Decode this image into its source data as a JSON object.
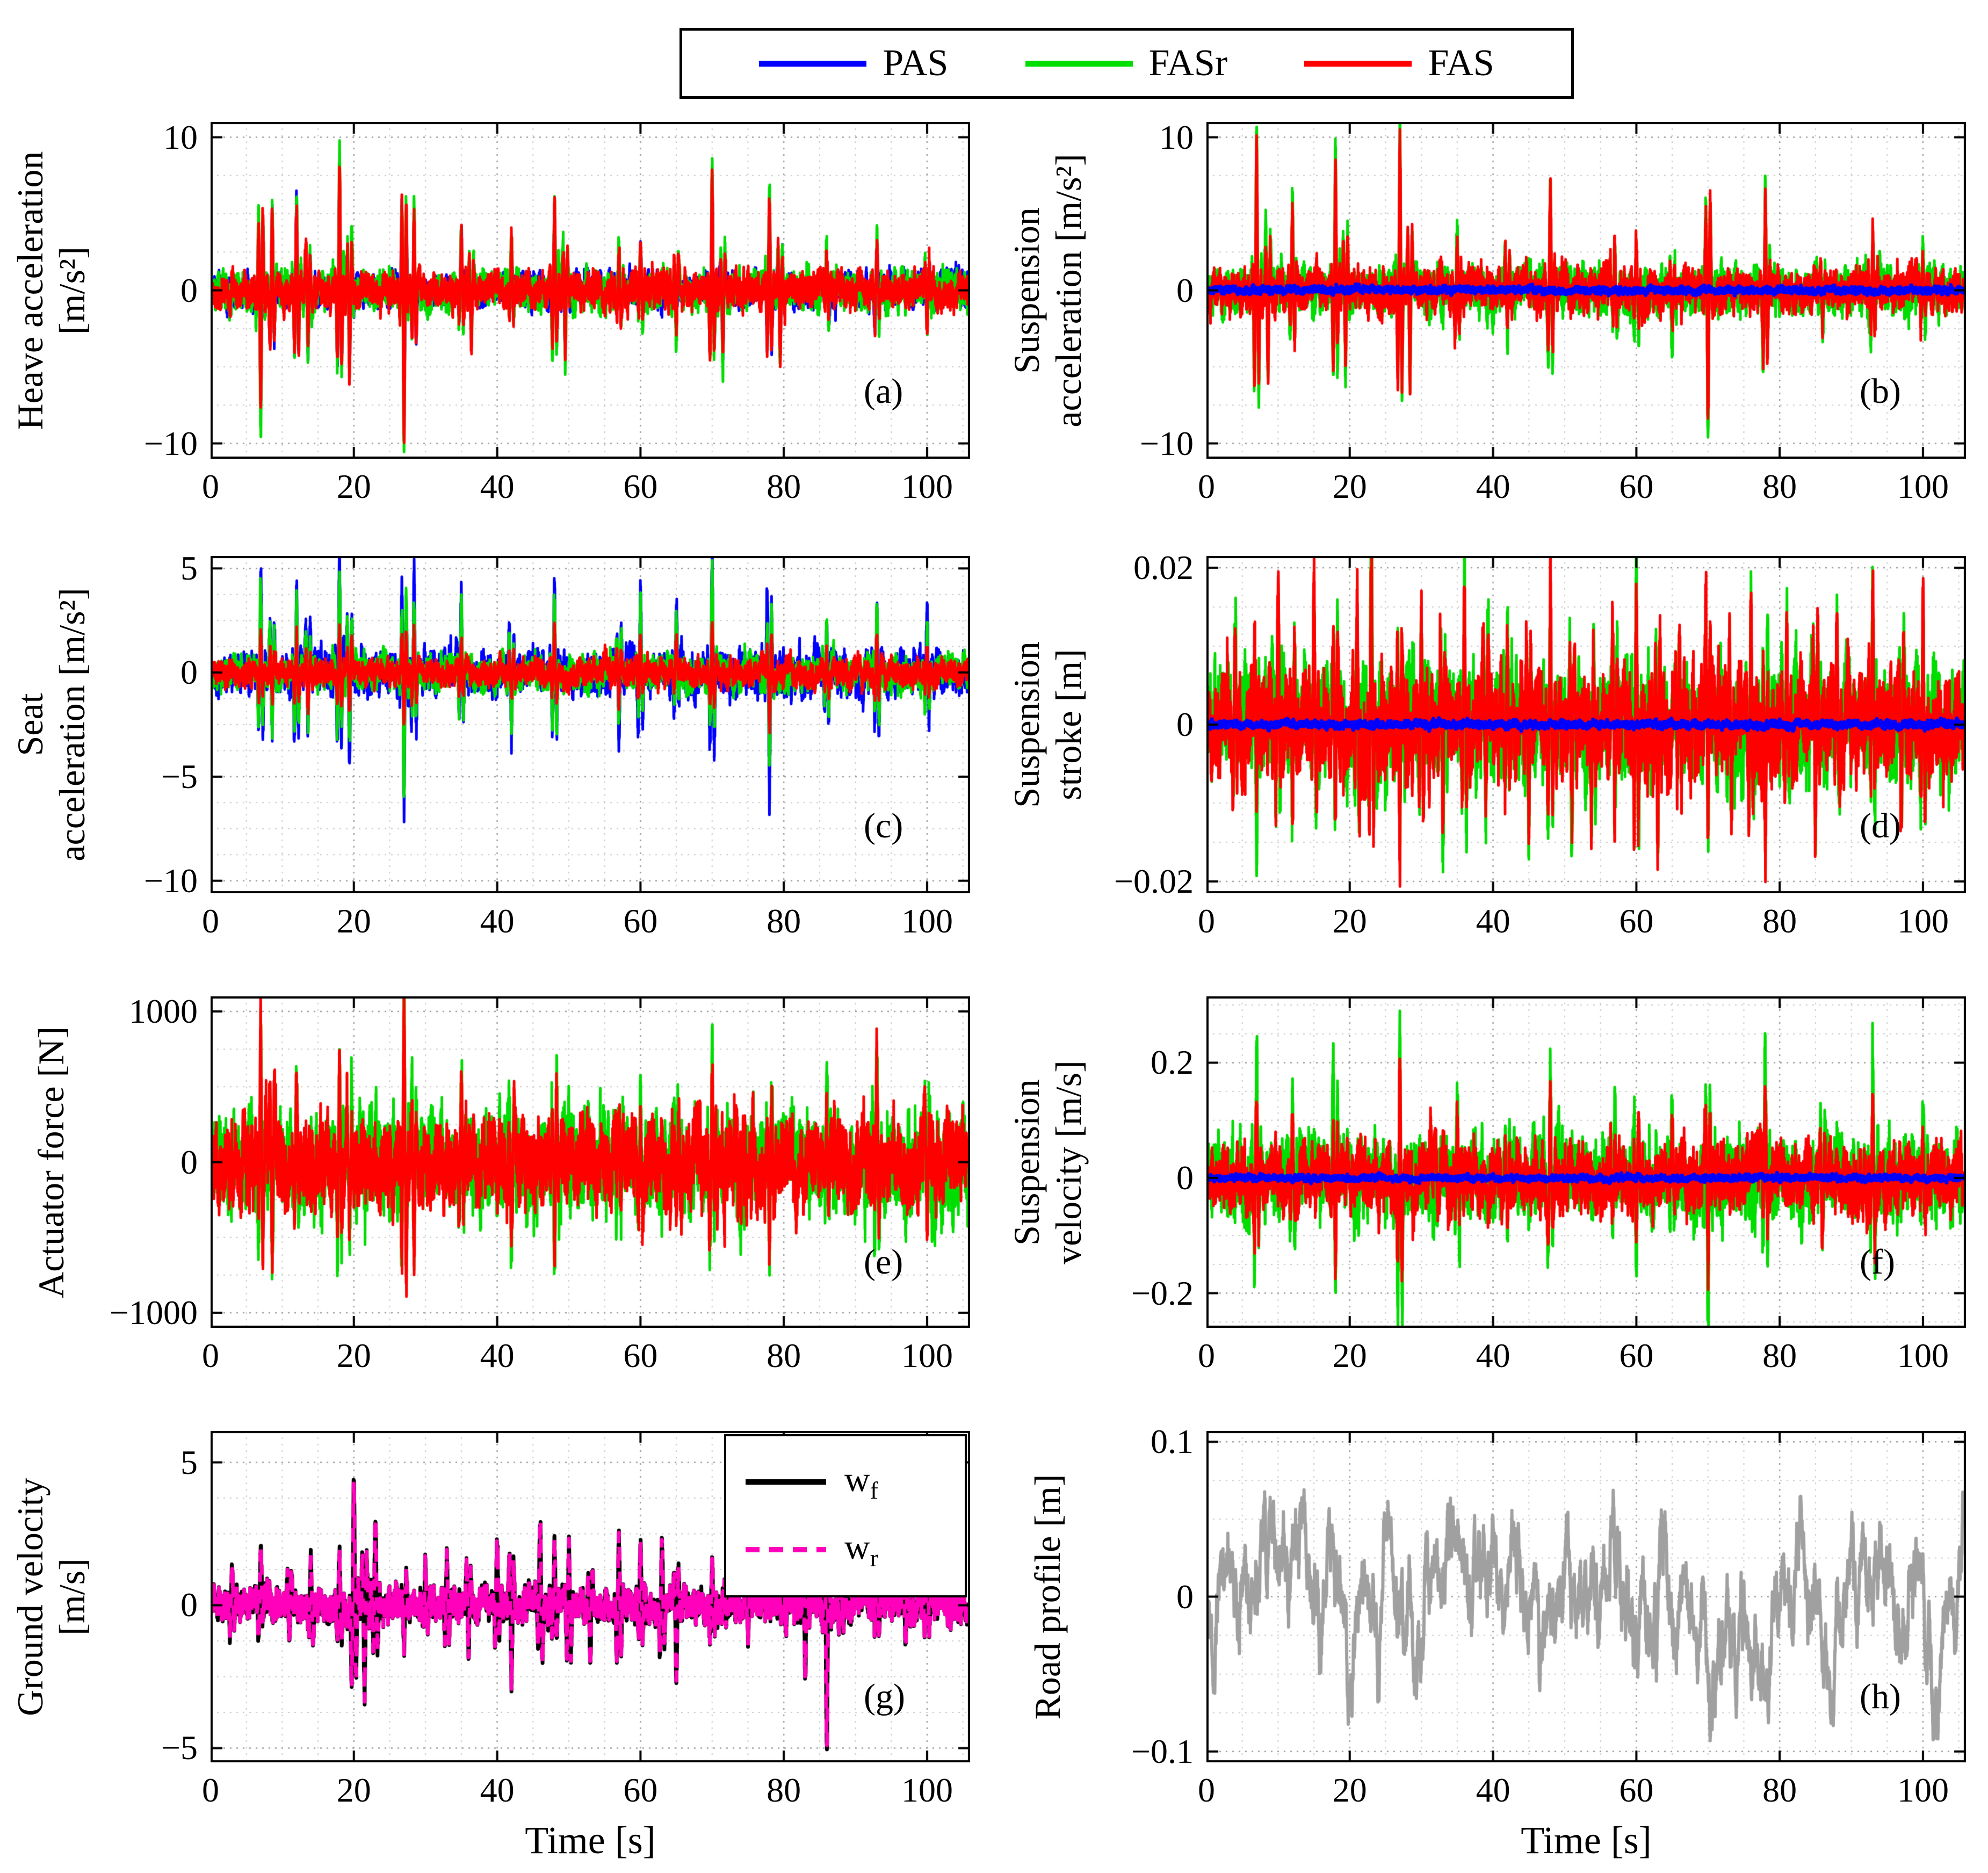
{
  "figure": {
    "background": "#ffffff",
    "legend": {
      "entries": [
        {
          "label": "PAS",
          "color": "#0000FF",
          "dash": false
        },
        {
          "label": "FASr",
          "color": "#00DD00",
          "dash": false
        },
        {
          "label": "FAS",
          "color": "#FF0000",
          "dash": false
        }
      ]
    },
    "time_axis_label": "Time [s]"
  },
  "chart_data": [
    {
      "id": "a",
      "type": "line",
      "panel_label": "(a)",
      "ylabel_lines": [
        "Heave acceleration",
        "[m/s²]"
      ],
      "xlabel": "",
      "xlim": [
        0,
        106
      ],
      "ylim": [
        -11,
        11
      ],
      "xticks": [
        0,
        20,
        40,
        60,
        80,
        100
      ],
      "xtick_labels": [
        "0",
        "20",
        "40",
        "60",
        "80",
        "100"
      ],
      "yticks": [
        -10,
        0,
        10
      ],
      "ytick_labels": [
        "−10",
        "0",
        "10"
      ],
      "grid": true,
      "events": [
        [
          7,
          -7.8
        ],
        [
          8.6,
          5.2
        ],
        [
          12,
          6.3
        ],
        [
          13.6,
          -4.2
        ],
        [
          18,
          8.3
        ],
        [
          19.4,
          -5
        ],
        [
          27,
          -9.3
        ],
        [
          28.4,
          5
        ],
        [
          35,
          3.6
        ],
        [
          36.4,
          -3
        ],
        [
          42,
          2.6
        ],
        [
          48,
          5.6
        ],
        [
          49.5,
          -4
        ],
        [
          57,
          2.4
        ],
        [
          60,
          2.8
        ],
        [
          65,
          -2.4
        ],
        [
          70,
          7.3
        ],
        [
          71.5,
          -4.2
        ],
        [
          78,
          5.9
        ],
        [
          79.5,
          -4
        ],
        [
          86,
          2.4
        ],
        [
          93,
          3.1
        ],
        [
          100,
          -2.2
        ]
      ],
      "series": [
        {
          "name": "PAS",
          "color": "#0000FF",
          "width": 5,
          "base": 1.0,
          "spike_scale": 0.92
        },
        {
          "name": "FASr",
          "color": "#00DD00",
          "width": 5,
          "base": 1.15,
          "spike_scale": 1.07
        },
        {
          "name": "FAS",
          "color": "#FF0000",
          "width": 5,
          "base": 1.08,
          "spike_scale": 1.0
        }
      ]
    },
    {
      "id": "b",
      "type": "line",
      "panel_label": "(b)",
      "ylabel_lines": [
        "Suspension",
        "acceleration [m/s²]"
      ],
      "xlabel": "",
      "xlim": [
        0,
        106
      ],
      "ylim": [
        -11,
        11
      ],
      "xticks": [
        0,
        20,
        40,
        60,
        80,
        100
      ],
      "xtick_labels": [
        "0",
        "20",
        "40",
        "60",
        "80",
        "100"
      ],
      "yticks": [
        -10,
        0,
        10
      ],
      "ytick_labels": [
        "−10",
        "0",
        "10"
      ],
      "grid": true,
      "events": [
        [
          7,
          9.4
        ],
        [
          8.6,
          -5
        ],
        [
          12,
          4.8
        ],
        [
          18,
          7.9
        ],
        [
          19.4,
          -4.6
        ],
        [
          27,
          9.6
        ],
        [
          28.4,
          -5.2
        ],
        [
          35,
          3.8
        ],
        [
          42,
          -3
        ],
        [
          48,
          6.7
        ],
        [
          57,
          2.6
        ],
        [
          60,
          3.2
        ],
        [
          65,
          -2.6
        ],
        [
          70,
          -8.8
        ],
        [
          78,
          6.7
        ],
        [
          86,
          -2.6
        ],
        [
          93,
          3.8
        ],
        [
          100,
          2.6
        ]
      ],
      "series": [
        {
          "name": "FASr",
          "color": "#00DD00",
          "width": 5,
          "base": 1.45,
          "spike_scale": 1.14
        },
        {
          "name": "FAS",
          "color": "#FF0000",
          "width": 5,
          "base": 1.3,
          "spike_scale": 1.0
        },
        {
          "name": "PAS",
          "color": "#0000FF",
          "width": 7,
          "base": 0.22,
          "spike_scale": 0
        }
      ]
    },
    {
      "id": "c",
      "type": "line",
      "panel_label": "(c)",
      "ylabel_lines": [
        "Seat",
        "acceleration [m/s²]"
      ],
      "xlabel": "",
      "xlim": [
        0,
        106
      ],
      "ylim": [
        -10.6,
        5.6
      ],
      "xticks": [
        0,
        20,
        40,
        60,
        80,
        100
      ],
      "xtick_labels": [
        "0",
        "20",
        "40",
        "60",
        "80",
        "100"
      ],
      "yticks": [
        -10,
        -5,
        0,
        5
      ],
      "ytick_labels": [
        "−10",
        "−5",
        "0",
        "5"
      ],
      "grid": true,
      "events": [
        [
          7,
          5.1
        ],
        [
          8.6,
          -3.6
        ],
        [
          12,
          4.5
        ],
        [
          13.6,
          -3.2
        ],
        [
          18,
          5.5
        ],
        [
          19.4,
          -4.2
        ],
        [
          27,
          -7
        ],
        [
          28.4,
          4.2
        ],
        [
          35,
          4
        ],
        [
          42,
          -3.2
        ],
        [
          48,
          4.5
        ],
        [
          57,
          -2.9
        ],
        [
          60,
          4
        ],
        [
          65,
          3
        ],
        [
          70,
          5.5
        ],
        [
          78,
          -5.6
        ],
        [
          86,
          2.9
        ],
        [
          93,
          4
        ],
        [
          100,
          3
        ]
      ],
      "series": [
        {
          "name": "PAS",
          "color": "#0000FF",
          "width": 5,
          "base": 0.95,
          "spike_scale": 1.0
        },
        {
          "name": "FASr",
          "color": "#00DD00",
          "width": 5,
          "base": 0.75,
          "spike_scale": 0.8
        },
        {
          "name": "FAS",
          "color": "#FF0000",
          "width": 5,
          "base": 0.6,
          "spike_scale": 0.4
        }
      ]
    },
    {
      "id": "d",
      "type": "line",
      "panel_label": "(d)",
      "ylabel_lines": [
        "Suspension",
        "stroke [m]"
      ],
      "xlabel": "",
      "xlim": [
        0,
        106
      ],
      "ylim": [
        -0.0215,
        0.0215
      ],
      "xticks": [
        0,
        20,
        40,
        60,
        80,
        100
      ],
      "xtick_labels": [
        "0",
        "20",
        "40",
        "60",
        "80",
        "100"
      ],
      "yticks": [
        -0.02,
        0,
        0.02
      ],
      "ytick_labels": [
        "−0.02",
        "0",
        "0.02"
      ],
      "grid": true,
      "events": [
        [
          4,
          0.01
        ],
        [
          7,
          -0.012
        ],
        [
          10,
          0.013
        ],
        [
          12,
          -0.011
        ],
        [
          15,
          0.014
        ],
        [
          18,
          -0.013
        ],
        [
          21,
          0.012
        ],
        [
          23,
          0.019
        ],
        [
          27,
          -0.014
        ],
        [
          30,
          0.012
        ],
        [
          33,
          -0.013
        ],
        [
          36,
          0.016
        ],
        [
          39,
          -0.012
        ],
        [
          42,
          0.012
        ],
        [
          45,
          -0.013
        ],
        [
          48,
          0.015
        ],
        [
          51,
          -0.012
        ],
        [
          54,
          0.011
        ],
        [
          57,
          -0.012
        ],
        [
          60,
          0.018
        ],
        [
          63,
          -0.013
        ],
        [
          66,
          0.011
        ],
        [
          70,
          -0.013
        ],
        [
          73,
          0.012
        ],
        [
          76,
          0.015
        ],
        [
          78,
          -0.014
        ],
        [
          81,
          0.012
        ],
        [
          85,
          -0.014
        ],
        [
          88,
          0.011
        ],
        [
          93,
          0.013
        ],
        [
          97,
          -0.012
        ],
        [
          100,
          0.012
        ]
      ],
      "series": [
        {
          "name": "FASr",
          "color": "#00DD00",
          "width": 5,
          "base": 0.0068,
          "spike_scale": 1.08
        },
        {
          "name": "FAS",
          "color": "#FF0000",
          "width": 5,
          "base": 0.0062,
          "spike_scale": 1.0
        },
        {
          "name": "PAS",
          "color": "#0000FF",
          "width": 7,
          "base": 0.00045,
          "spike_scale": 0
        }
      ]
    },
    {
      "id": "e",
      "type": "line",
      "panel_label": "(e)",
      "ylabel_lines": [
        "Actuator force [N]"
      ],
      "xlabel": "",
      "xlim": [
        0,
        106
      ],
      "ylim": [
        -1100,
        1100
      ],
      "xticks": [
        0,
        20,
        40,
        60,
        80,
        100
      ],
      "xtick_labels": [
        "0",
        "20",
        "40",
        "60",
        "80",
        "100"
      ],
      "yticks": [
        -1000,
        0,
        1000
      ],
      "ytick_labels": [
        "−1000",
        "0",
        "1000"
      ],
      "grid": true,
      "events": [
        [
          7,
          800
        ],
        [
          8.6,
          -520
        ],
        [
          12,
          520
        ],
        [
          18,
          640
        ],
        [
          19.4,
          -460
        ],
        [
          27,
          930
        ],
        [
          28.4,
          -520
        ],
        [
          35,
          420
        ],
        [
          42,
          -380
        ],
        [
          48,
          -600
        ],
        [
          57,
          340
        ],
        [
          60,
          420
        ],
        [
          65,
          -360
        ],
        [
          70,
          640
        ],
        [
          78,
          -560
        ],
        [
          86,
          340
        ],
        [
          93,
          640
        ],
        [
          100,
          -400
        ]
      ],
      "series": [
        {
          "name": "PAS",
          "color": "#0000FF",
          "width": 5,
          "base": 2,
          "spike_scale": 0
        },
        {
          "name": "FASr",
          "color": "#00DD00",
          "width": 5,
          "base": 300,
          "spike_scale": 1.12
        },
        {
          "name": "FAS",
          "color": "#FF0000",
          "width": 5,
          "base": 272,
          "spike_scale": 1.0
        }
      ]
    },
    {
      "id": "f",
      "type": "line",
      "panel_label": "(f)",
      "ylabel_lines": [
        "Suspension",
        "velocity [m/s]"
      ],
      "xlabel": "",
      "xlim": [
        0,
        106
      ],
      "ylim": [
        -0.26,
        0.315
      ],
      "xticks": [
        0,
        20,
        40,
        60,
        80,
        100
      ],
      "xtick_labels": [
        "0",
        "20",
        "40",
        "60",
        "80",
        "100"
      ],
      "yticks": [
        -0.2,
        0,
        0.2
      ],
      "ytick_labels": [
        "−0.2",
        "0",
        "0.2"
      ],
      "grid": true,
      "events": [
        [
          7,
          0.155
        ],
        [
          12,
          0.1
        ],
        [
          18,
          -0.145
        ],
        [
          27,
          0.195
        ],
        [
          35,
          0.08
        ],
        [
          42,
          -0.07
        ],
        [
          48,
          0.12
        ],
        [
          57,
          0.07
        ],
        [
          60,
          -0.1
        ],
        [
          65,
          0.07
        ],
        [
          70,
          -0.165
        ],
        [
          78,
          0.135
        ],
        [
          86,
          -0.07
        ],
        [
          93,
          0.115
        ],
        [
          100,
          0.08
        ]
      ],
      "series": [
        {
          "name": "FASr",
          "color": "#00DD00",
          "width": 5,
          "base": 0.065,
          "spike_scale": 1.55
        },
        {
          "name": "FAS",
          "color": "#FF0000",
          "width": 5,
          "base": 0.055,
          "spike_scale": 1.0
        },
        {
          "name": "PAS",
          "color": "#0000FF",
          "width": 7,
          "base": 0.005,
          "spike_scale": 0
        }
      ]
    },
    {
      "id": "g",
      "type": "line",
      "panel_label": "(g)",
      "ylabel_lines": [
        "Ground velocity",
        "[m/s]"
      ],
      "xlabel": "Time [s]",
      "xlim": [
        0,
        106
      ],
      "ylim": [
        -5.5,
        6.1
      ],
      "xticks": [
        0,
        20,
        40,
        60,
        80,
        100
      ],
      "xtick_labels": [
        "0",
        "20",
        "40",
        "60",
        "80",
        "100"
      ],
      "yticks": [
        -5,
        0,
        5
      ],
      "ytick_labels": [
        "−5",
        "0",
        "5"
      ],
      "grid": true,
      "events": [
        [
          3,
          1.4
        ],
        [
          7,
          1.7
        ],
        [
          11,
          -1.6
        ],
        [
          14,
          1.5
        ],
        [
          18,
          2
        ],
        [
          20,
          4.5
        ],
        [
          21.5,
          -2.9
        ],
        [
          23,
          2.7
        ],
        [
          27,
          -1.5
        ],
        [
          30,
          1.3
        ],
        [
          33,
          1.5
        ],
        [
          36,
          -1.8
        ],
        [
          40,
          2.3
        ],
        [
          42,
          -2.5
        ],
        [
          46,
          2.6
        ],
        [
          48,
          2
        ],
        [
          50,
          2.3
        ],
        [
          53,
          -1.9
        ],
        [
          57,
          2.7
        ],
        [
          60,
          2.1
        ],
        [
          63,
          2.3
        ],
        [
          65,
          -2
        ],
        [
          70,
          1.4
        ],
        [
          75,
          -1.2
        ],
        [
          80,
          1.4
        ],
        [
          83,
          -2.4
        ],
        [
          86,
          -4.4
        ],
        [
          88,
          1.5
        ],
        [
          93,
          1.6
        ],
        [
          97,
          -1.2
        ],
        [
          100,
          1.3
        ]
      ],
      "series": [
        {
          "name": "w_f",
          "color": "#000000",
          "width": 7,
          "base": 0.55,
          "spike_scale": 1.0
        },
        {
          "name": "w_r",
          "color": "#FF00BB",
          "width": 7,
          "base": 0.55,
          "spike_scale": 0.97,
          "dash": [
            26,
            20
          ],
          "copy_prev": true,
          "copy_scale": 0.97
        }
      ],
      "legend": {
        "entries": [
          {
            "main": "w",
            "sub": "f",
            "color": "#000000",
            "dash": false
          },
          {
            "main": "w",
            "sub": "r",
            "color": "#FF00BB",
            "dash": true
          }
        ]
      }
    },
    {
      "id": "h",
      "type": "line",
      "panel_label": "(h)",
      "ylabel_lines": [
        "Road profile [m]"
      ],
      "xlabel": "Time [s]",
      "xlim": [
        0,
        106
      ],
      "ylim": [
        -0.107,
        0.107
      ],
      "xticks": [
        0,
        20,
        40,
        60,
        80,
        100
      ],
      "xtick_labels": [
        "0",
        "20",
        "40",
        "60",
        "80",
        "100"
      ],
      "yticks": [
        -0.1,
        0,
        0.1
      ],
      "ytick_labels": [
        "−0.1",
        "0",
        "0.1"
      ],
      "grid": true,
      "events": [],
      "series": [
        {
          "name": "road",
          "color": "#A0A0A0",
          "width": 6,
          "base": 0.05,
          "spike_scale": 0,
          "kind": "slow"
        }
      ]
    }
  ]
}
